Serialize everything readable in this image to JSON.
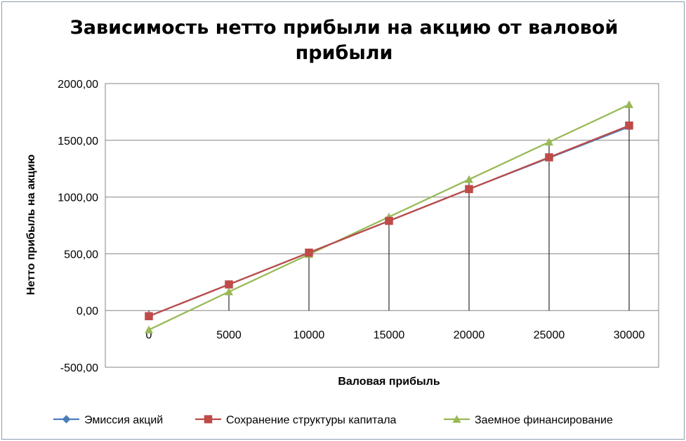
{
  "chart_data": {
    "type": "line",
    "title_lines": [
      "Зависимость нетто прибыли на акцию от валовой",
      "прибыли"
    ],
    "xlabel": "Валовая прибыль",
    "ylabel": "Нетто прибыль на акцию",
    "categories": [
      "0",
      "5000",
      "10000",
      "15000",
      "20000",
      "25000",
      "30000"
    ],
    "x": [
      0,
      5000,
      10000,
      15000,
      20000,
      25000,
      30000
    ],
    "ylim": [
      -500,
      2000
    ],
    "y_ticks": [
      -500,
      0,
      500,
      1000,
      1500,
      2000
    ],
    "y_tick_labels": [
      "-500,00",
      "0,00",
      "500,00",
      "1000,00",
      "1500,00",
      "2000,00"
    ],
    "grid": "horizontal",
    "drop_lines": true,
    "legend_position": "bottom",
    "series": [
      {
        "name": "Эмиссия акций",
        "values": [
          -50,
          230,
          510,
          790,
          1070,
          1345,
          1620
        ],
        "color": "#4a7ebb",
        "marker": "diamond"
      },
      {
        "name": "Сохранение структуры капитала",
        "values": [
          -50,
          230,
          510,
          790,
          1070,
          1350,
          1630
        ],
        "color": "#be4b48",
        "marker": "square"
      },
      {
        "name": "Заемное финансирование",
        "values": [
          -170,
          165,
          495,
          825,
          1155,
          1485,
          1815
        ],
        "color": "#98b954",
        "marker": "triangle"
      }
    ]
  }
}
